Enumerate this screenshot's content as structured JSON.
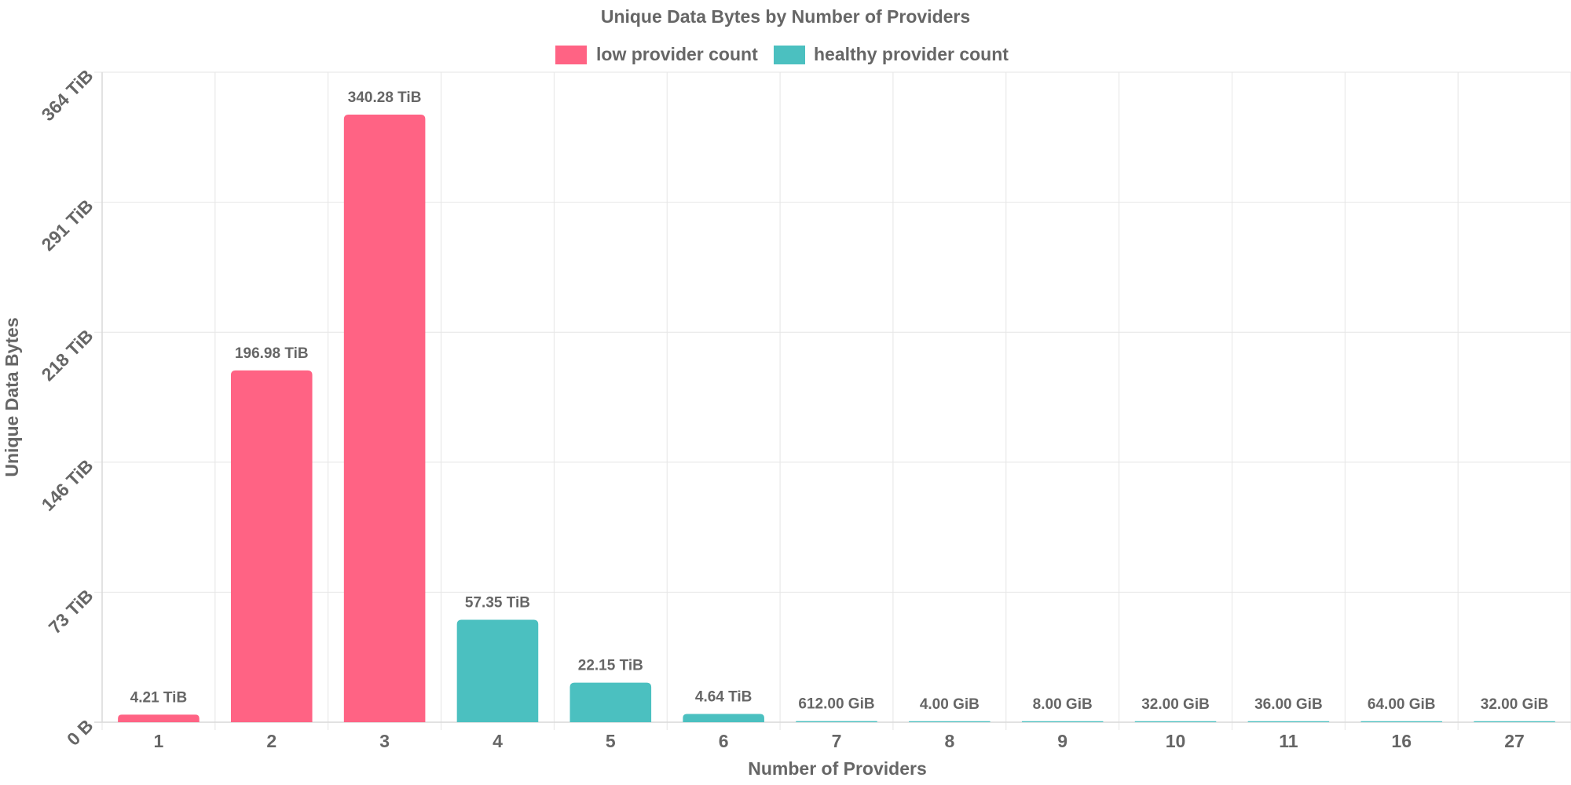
{
  "chart_data": {
    "type": "bar",
    "title": "Unique Data Bytes by Number of Providers",
    "xlabel": "Number of Providers",
    "ylabel": "Unique Data Bytes",
    "categories": [
      "1",
      "2",
      "3",
      "4",
      "5",
      "6",
      "7",
      "8",
      "9",
      "10",
      "11",
      "16",
      "27"
    ],
    "values_tib": [
      4.21,
      196.98,
      340.28,
      57.35,
      22.15,
      4.64,
      0.59765625,
      0.00390625,
      0.0078125,
      0.03125,
      0.03515625,
      0.0625,
      0.03125
    ],
    "data_labels": [
      "4.21 TiB",
      "196.98 TiB",
      "340.28 TiB",
      "57.35 TiB",
      "22.15 TiB",
      "4.64 TiB",
      "612.00 GiB",
      "4.00 GiB",
      "8.00 GiB",
      "32.00 GiB",
      "36.00 GiB",
      "64.00 GiB",
      "32.00 GiB"
    ],
    "series_assignment": [
      "low",
      "low",
      "low",
      "healthy",
      "healthy",
      "healthy",
      "healthy",
      "healthy",
      "healthy",
      "healthy",
      "healthy",
      "healthy",
      "healthy"
    ],
    "series": [
      {
        "key": "low",
        "name": "low provider count",
        "color": "#ff6384"
      },
      {
        "key": "healthy",
        "name": "healthy provider count",
        "color": "#4bc0c0"
      }
    ],
    "y_ticks": [
      "0 B",
      "73 TiB",
      "146 TiB",
      "218 TiB",
      "291 TiB",
      "364 TiB"
    ],
    "y_tick_values_tib": [
      0,
      72.8,
      145.6,
      218.4,
      291.2,
      364
    ],
    "ylim_tib": [
      0,
      364
    ],
    "grid": true,
    "legend_position": "top"
  }
}
